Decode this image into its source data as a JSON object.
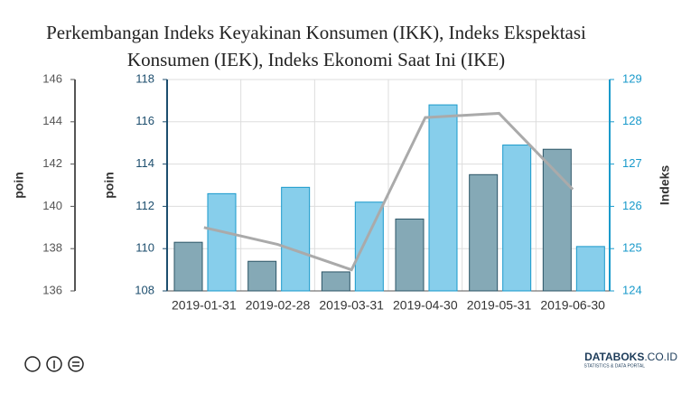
{
  "chart_data": {
    "type": "bar",
    "title": [
      "Perkembangan Indeks Keyakinan Konsumen (IKK), Indeks Ekspektasi",
      "Konsumen (IEK), Indeks Ekonomi Saat Ini (IKE)"
    ],
    "categories": [
      "2019-01-31",
      "2019-02-28",
      "2019-03-31",
      "2019-04-30",
      "2019-05-31",
      "2019-06-30"
    ],
    "series": [
      {
        "type": "bar",
        "color": "#85a9b6",
        "stroke": "#2c5566",
        "values": [
          110.3,
          109.4,
          108.9,
          111.4,
          113.5,
          114.7
        ]
      },
      {
        "type": "bar",
        "axis": "y3",
        "color": "#87ceeb",
        "stroke": "#1a9acb",
        "values": [
          140.6,
          140.9,
          140.2,
          144.8,
          142.9,
          138.1
        ]
      },
      {
        "type": "line",
        "axis": "y2",
        "color": "#aaaaaa",
        "values": [
          125.5,
          125.1,
          124.5,
          128.1,
          128.2,
          126.4
        ]
      }
    ],
    "ylabel": "poin",
    "ylim": [
      108,
      118
    ],
    "yticks": [
      108,
      110,
      112,
      114,
      116,
      118
    ],
    "y3label": "poin",
    "y3lim": [
      136,
      146
    ],
    "y3ticks": [
      136,
      138,
      140,
      142,
      144,
      146
    ],
    "y2label": "Indeks",
    "y2lim": [
      124,
      129
    ],
    "y2ticks": [
      124,
      125,
      126,
      127,
      128,
      129
    ],
    "grid": true
  },
  "footer": {
    "brand": "DATABOKS",
    "domain": ".CO.ID",
    "tagline": "STATISTICS & DATA PORTAL"
  }
}
